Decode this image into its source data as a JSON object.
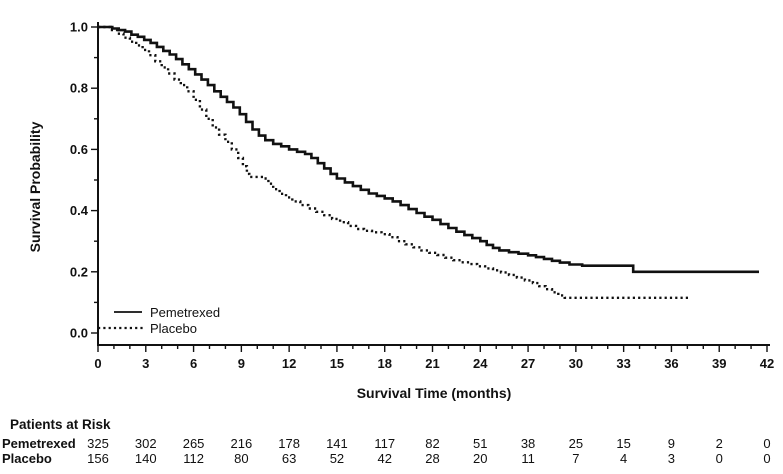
{
  "figure": {
    "background": "#ffffff",
    "ink_color": "#111111"
  },
  "chart_data": {
    "type": "line",
    "subtype": "kaplan-meier-step",
    "title": "",
    "xlabel": "Survival Time (months)",
    "ylabel": "Survival Probability",
    "xlim": [
      0,
      42
    ],
    "ylim": [
      0.0,
      1.0
    ],
    "grid": false,
    "x_major_ticks": [
      0,
      3,
      6,
      9,
      12,
      15,
      18,
      21,
      24,
      27,
      30,
      33,
      36,
      39,
      42
    ],
    "x_tick_labels": [
      "0",
      "3",
      "6",
      "9",
      "12",
      "15",
      "18",
      "21",
      "24",
      "27",
      "30",
      "33",
      "36",
      "39",
      "42"
    ],
    "x_minor_step": 1,
    "y_major_ticks": [
      0.0,
      0.2,
      0.4,
      0.6,
      0.8,
      1.0
    ],
    "y_tick_labels": [
      "0.0",
      "0.2",
      "0.4",
      "0.6",
      "0.8",
      "1.0"
    ],
    "y_minor_step": 0.1,
    "legend": {
      "position": "lower-left",
      "entries": [
        {
          "label": "Pemetrexed",
          "style": "solid"
        },
        {
          "label": "Placebo",
          "style": "dotted"
        }
      ]
    },
    "series": [
      {
        "name": "Pemetrexed",
        "style": "solid",
        "points": [
          [
            0,
            1.0
          ],
          [
            0.9,
            0.995
          ],
          [
            1.3,
            0.99
          ],
          [
            1.7,
            0.985
          ],
          [
            2.1,
            0.975
          ],
          [
            2.5,
            0.968
          ],
          [
            2.9,
            0.958
          ],
          [
            3.3,
            0.948
          ],
          [
            3.7,
            0.935
          ],
          [
            4.1,
            0.922
          ],
          [
            4.5,
            0.91
          ],
          [
            4.9,
            0.895
          ],
          [
            5.3,
            0.878
          ],
          [
            5.7,
            0.862
          ],
          [
            6.1,
            0.845
          ],
          [
            6.5,
            0.828
          ],
          [
            6.9,
            0.81
          ],
          [
            7.3,
            0.79
          ],
          [
            7.7,
            0.772
          ],
          [
            8.1,
            0.755
          ],
          [
            8.5,
            0.737
          ],
          [
            8.9,
            0.715
          ],
          [
            9.3,
            0.69
          ],
          [
            9.7,
            0.665
          ],
          [
            10.1,
            0.645
          ],
          [
            10.5,
            0.63
          ],
          [
            11.0,
            0.618
          ],
          [
            11.5,
            0.61
          ],
          [
            12.0,
            0.6
          ],
          [
            12.5,
            0.592
          ],
          [
            13.0,
            0.585
          ],
          [
            13.4,
            0.572
          ],
          [
            13.8,
            0.555
          ],
          [
            14.2,
            0.538
          ],
          [
            14.6,
            0.52
          ],
          [
            15.0,
            0.505
          ],
          [
            15.5,
            0.492
          ],
          [
            16.0,
            0.48
          ],
          [
            16.5,
            0.468
          ],
          [
            17.0,
            0.456
          ],
          [
            17.5,
            0.448
          ],
          [
            18.0,
            0.44
          ],
          [
            18.5,
            0.43
          ],
          [
            19.0,
            0.418
          ],
          [
            19.5,
            0.405
          ],
          [
            20.0,
            0.392
          ],
          [
            20.5,
            0.38
          ],
          [
            21.0,
            0.37
          ],
          [
            21.5,
            0.356
          ],
          [
            22.0,
            0.343
          ],
          [
            22.5,
            0.331
          ],
          [
            23.0,
            0.32
          ],
          [
            23.5,
            0.31
          ],
          [
            24.0,
            0.3
          ],
          [
            24.4,
            0.288
          ],
          [
            24.8,
            0.278
          ],
          [
            25.2,
            0.27
          ],
          [
            25.8,
            0.264
          ],
          [
            26.4,
            0.259
          ],
          [
            27.0,
            0.254
          ],
          [
            27.5,
            0.248
          ],
          [
            28.0,
            0.242
          ],
          [
            28.5,
            0.236
          ],
          [
            29.0,
            0.23
          ],
          [
            29.6,
            0.224
          ],
          [
            30.4,
            0.22
          ],
          [
            33.6,
            0.2
          ],
          [
            41.5,
            0.2
          ]
        ]
      },
      {
        "name": "Placebo",
        "style": "dotted",
        "points": [
          [
            0,
            1.0
          ],
          [
            0.8,
            0.99
          ],
          [
            1.2,
            0.978
          ],
          [
            1.6,
            0.965
          ],
          [
            2.0,
            0.952
          ],
          [
            2.4,
            0.94
          ],
          [
            2.8,
            0.925
          ],
          [
            3.2,
            0.908
          ],
          [
            3.6,
            0.888
          ],
          [
            4.0,
            0.868
          ],
          [
            4.4,
            0.848
          ],
          [
            4.8,
            0.828
          ],
          [
            5.2,
            0.81
          ],
          [
            5.6,
            0.79
          ],
          [
            6.0,
            0.762
          ],
          [
            6.4,
            0.73
          ],
          [
            6.8,
            0.7
          ],
          [
            7.2,
            0.672
          ],
          [
            7.6,
            0.648
          ],
          [
            8.0,
            0.625
          ],
          [
            8.4,
            0.6
          ],
          [
            8.8,
            0.572
          ],
          [
            9.1,
            0.545
          ],
          [
            9.35,
            0.52
          ],
          [
            9.5,
            0.51
          ],
          [
            10.4,
            0.505
          ],
          [
            10.7,
            0.488
          ],
          [
            11.0,
            0.47
          ],
          [
            11.4,
            0.455
          ],
          [
            11.8,
            0.443
          ],
          [
            12.2,
            0.43
          ],
          [
            12.7,
            0.418
          ],
          [
            13.2,
            0.407
          ],
          [
            13.7,
            0.396
          ],
          [
            14.2,
            0.385
          ],
          [
            14.7,
            0.373
          ],
          [
            15.2,
            0.362
          ],
          [
            15.7,
            0.35
          ],
          [
            16.2,
            0.34
          ],
          [
            16.7,
            0.334
          ],
          [
            17.2,
            0.329
          ],
          [
            17.8,
            0.323
          ],
          [
            18.3,
            0.313
          ],
          [
            18.8,
            0.3
          ],
          [
            19.3,
            0.29
          ],
          [
            19.8,
            0.28
          ],
          [
            20.3,
            0.27
          ],
          [
            20.8,
            0.262
          ],
          [
            21.3,
            0.255
          ],
          [
            21.8,
            0.246
          ],
          [
            22.3,
            0.238
          ],
          [
            22.8,
            0.231
          ],
          [
            23.3,
            0.225
          ],
          [
            23.8,
            0.218
          ],
          [
            24.3,
            0.211
          ],
          [
            24.8,
            0.205
          ],
          [
            25.3,
            0.198
          ],
          [
            25.8,
            0.19
          ],
          [
            26.3,
            0.181
          ],
          [
            26.8,
            0.172
          ],
          [
            27.3,
            0.163
          ],
          [
            27.7,
            0.153
          ],
          [
            28.1,
            0.143
          ],
          [
            28.5,
            0.133
          ],
          [
            28.9,
            0.123
          ],
          [
            29.3,
            0.115
          ],
          [
            37.2,
            0.115
          ]
        ]
      }
    ]
  },
  "at_risk": {
    "title": "Patients at Risk",
    "times": [
      0,
      3,
      6,
      9,
      12,
      15,
      18,
      21,
      24,
      27,
      30,
      33,
      36,
      39,
      42
    ],
    "rows": [
      {
        "label": "Pemetrexed",
        "counts": [
          325,
          302,
          265,
          216,
          178,
          141,
          117,
          82,
          51,
          38,
          25,
          15,
          9,
          2,
          0
        ]
      },
      {
        "label": "Placebo",
        "counts": [
          156,
          140,
          112,
          80,
          63,
          52,
          42,
          28,
          20,
          11,
          7,
          4,
          3,
          0,
          0
        ]
      }
    ]
  }
}
